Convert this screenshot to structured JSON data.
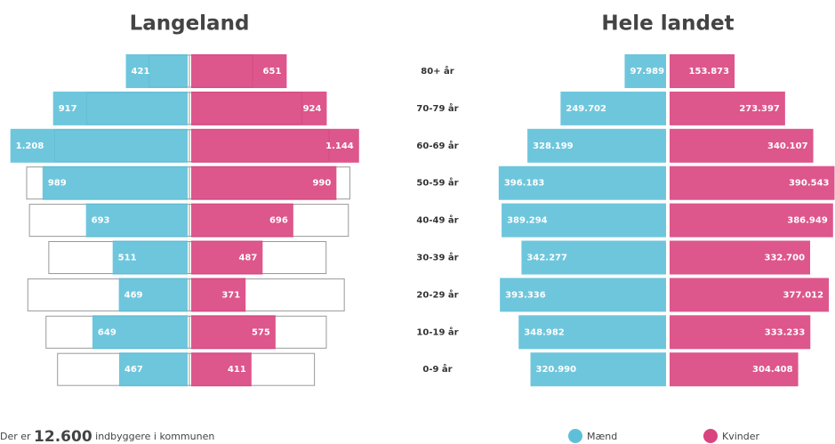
{
  "chart_data": [
    {
      "type": "pyramid",
      "title": "Langeland",
      "categories": [
        "80+ år",
        "70-79 år",
        "60-69 år",
        "50-59 år",
        "40-49 år",
        "30-39 år",
        "20-29 år",
        "10-19 år",
        "0-9 år"
      ],
      "series": [
        {
          "color": "#5ec0d8",
          "values": [
            421,
            917,
            1208,
            989,
            693,
            511,
            469,
            649,
            467
          ],
          "value_labels": [
            "421",
            "917",
            "1.208",
            "989",
            "693",
            "511",
            "469",
            "649",
            "467"
          ]
        },
        {
          "color": "#d9447f",
          "values": [
            651,
            924,
            1144,
            990,
            696,
            487,
            371,
            575,
            411
          ],
          "value_labels": [
            "651",
            "924",
            "1.144",
            "990",
            "696",
            "487",
            "371",
            "575",
            "411"
          ]
        }
      ]
    },
    {
      "type": "pyramid",
      "title": "Hele landet",
      "series": [
        {
          "name": "Mænd",
          "color": "#5ec0d8",
          "values": [
            97989,
            249702,
            328199,
            396183,
            389294,
            342277,
            393336,
            348982,
            320990
          ],
          "value_labels": [
            "97.989",
            "249.702",
            "328.199",
            "396.183",
            "389.294",
            "342.277",
            "393.336",
            "348.982",
            "320.990"
          ]
        },
        {
          "name": "Kvinder",
          "color": "#d9447f",
          "values": [
            153873,
            273397,
            340107,
            390543,
            386949,
            332700,
            377012,
            333233,
            304408
          ],
          "value_labels": [
            "153.873",
            "273.397",
            "340.107",
            "390.543",
            "386.949",
            "332.700",
            "377.012",
            "333.233",
            "304.408"
          ]
        }
      ]
    }
  ],
  "footer": {
    "before": "Der er",
    "total": "12.600",
    "after": "indbyggere i kommunen"
  }
}
